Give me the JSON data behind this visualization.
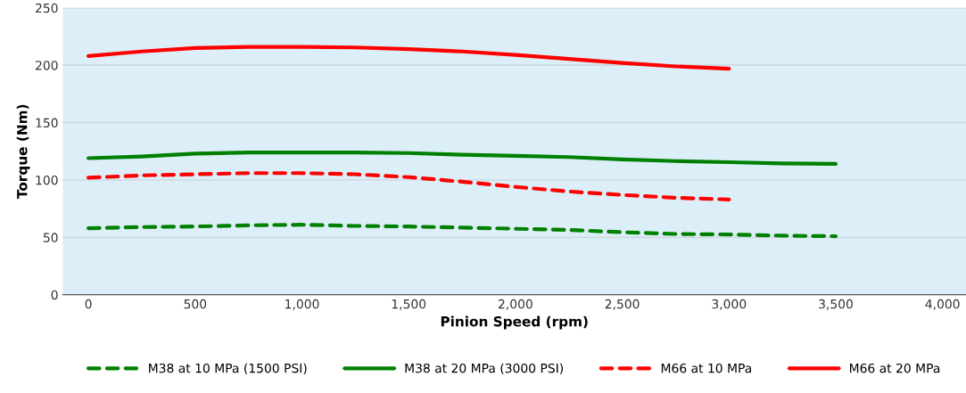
{
  "chart_data": {
    "type": "line",
    "xlabel": "Pinion Speed (rpm)",
    "ylabel": "Torque (Nm)",
    "x": [
      0,
      250,
      500,
      750,
      1000,
      1250,
      1500,
      1750,
      2000,
      2250,
      2500,
      2750,
      3000,
      3250,
      3500
    ],
    "xlim": [
      -120,
      4110
    ],
    "xticks": [
      {
        "value": 0,
        "label": "0"
      },
      {
        "value": 500,
        "label": "500"
      },
      {
        "value": 1000,
        "label": "1,000"
      },
      {
        "value": 1500,
        "label": "1,500"
      },
      {
        "value": 2000,
        "label": "2,000"
      },
      {
        "value": 2500,
        "label": "2,500"
      },
      {
        "value": 3000,
        "label": "3,000"
      },
      {
        "value": 3500,
        "label": "3,500"
      },
      {
        "value": 4000,
        "label": "4,000"
      }
    ],
    "ylim": [
      0,
      250
    ],
    "yticks": [
      0,
      50,
      100,
      150,
      200,
      250
    ],
    "grid": "y",
    "legend": "bottom",
    "marker": "none",
    "series": [
      {
        "name": "M38 at 10 MPa (1500 PSI)",
        "color": "#008000",
        "line_style": "dashed",
        "values": [
          58,
          59,
          59.5,
          60.5,
          61,
          60,
          59.5,
          58.5,
          57.5,
          56.5,
          54.5,
          53,
          52.5,
          51.5,
          51
        ]
      },
      {
        "name": "M38 at 20 MPa (3000 PSI)",
        "color": "#008000",
        "line_style": "solid",
        "values": [
          119,
          120.5,
          123,
          124,
          124,
          124,
          123.5,
          122,
          121,
          120,
          118,
          116.5,
          115.5,
          114.5,
          114
        ]
      },
      {
        "name": "M66 at 10 MPa",
        "color": "#ff0000",
        "line_style": "dashed",
        "values": [
          102,
          104,
          105,
          106,
          106,
          105,
          102.5,
          98.5,
          94,
          90,
          87,
          84.5,
          83,
          null,
          null
        ]
      },
      {
        "name": "M66 at 20 MPa",
        "color": "#ff0000",
        "line_style": "solid",
        "values": [
          208,
          212,
          215,
          216,
          216,
          215.5,
          214,
          212,
          209,
          205.5,
          202,
          199,
          197,
          null,
          null
        ]
      }
    ]
  }
}
